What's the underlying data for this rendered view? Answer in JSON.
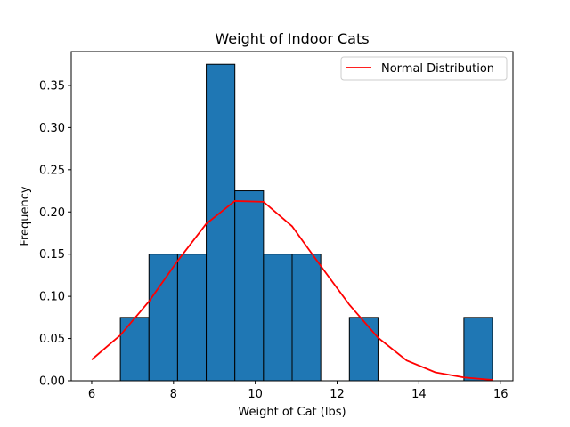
{
  "chart_data": {
    "type": "bar",
    "title": "Weight of Indoor Cats",
    "xlabel": "Weight of Cat (lbs)",
    "ylabel": "Frequency",
    "xlim": [
      5.5,
      16.3
    ],
    "ylim": [
      0,
      0.39
    ],
    "xticks": [
      6,
      8,
      10,
      12,
      14,
      16
    ],
    "xtick_labels": [
      "6",
      "8",
      "10",
      "12",
      "14",
      "16"
    ],
    "yticks": [
      0,
      0.05,
      0.1,
      0.15,
      0.2,
      0.25,
      0.3,
      0.35
    ],
    "ytick_labels": [
      "0.00",
      "0.05",
      "0.10",
      "0.15",
      "0.20",
      "0.25",
      "0.30",
      "0.35"
    ],
    "grid": false,
    "legend_position": "top-right",
    "histogram": {
      "bin_width": 0.7,
      "bins": [
        {
          "x0": 6.7,
          "value": 0.075
        },
        {
          "x0": 7.4,
          "value": 0.15
        },
        {
          "x0": 8.1,
          "value": 0.15
        },
        {
          "x0": 8.8,
          "value": 0.375
        },
        {
          "x0": 9.5,
          "value": 0.225
        },
        {
          "x0": 10.2,
          "value": 0.15
        },
        {
          "x0": 10.9,
          "value": 0.15
        },
        {
          "x0": 12.3,
          "value": 0.075
        },
        {
          "x0": 15.1,
          "value": 0.075
        }
      ],
      "color": "#1f77b4",
      "edge_color": "#000000"
    },
    "series": [
      {
        "name": "Normal Distribution",
        "type": "line",
        "color": "#ff0000",
        "x": [
          6.0,
          6.7,
          7.4,
          8.1,
          8.8,
          9.5,
          10.2,
          10.9,
          11.6,
          12.3,
          13.0,
          13.7,
          14.4,
          15.1,
          15.8
        ],
        "y": [
          0.025,
          0.054,
          0.094,
          0.142,
          0.186,
          0.213,
          0.212,
          0.183,
          0.136,
          0.09,
          0.051,
          0.024,
          0.01,
          0.004,
          0.001
        ]
      }
    ]
  }
}
